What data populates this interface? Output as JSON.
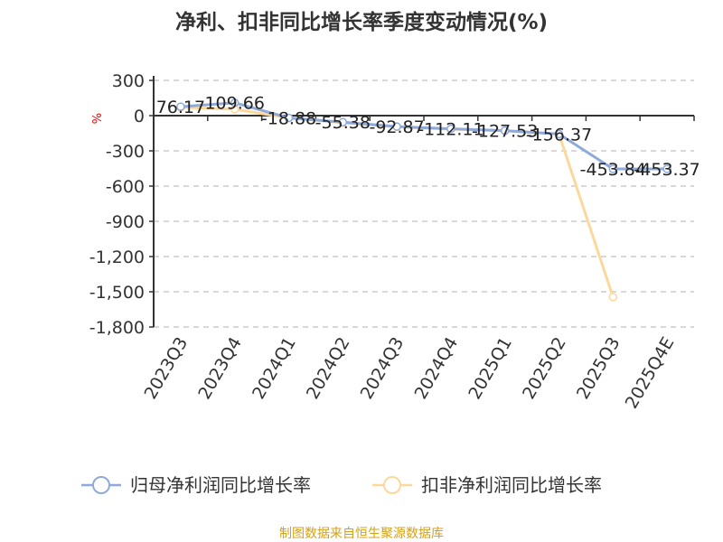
{
  "chart_data": {
    "type": "line",
    "title": "净利、扣非同比增长率季度变动情况(%)",
    "ylabel": "%",
    "categories": [
      "2023Q3",
      "2023Q4",
      "2024Q1",
      "2024Q2",
      "2024Q3",
      "2024Q4",
      "2025Q1",
      "2025Q2",
      "2025Q3",
      "2025Q4E"
    ],
    "yticks": [
      "300",
      "0",
      "-300",
      "-600",
      "-900",
      "-1,200",
      "-1,500",
      "-1,800"
    ],
    "ylim": [
      -1800,
      300
    ],
    "grid": true,
    "legend_position": "bottom",
    "series": [
      {
        "name": "归母净利润同比增长率",
        "color": "#8eaadb",
        "values": [
          76.17,
          109.66,
          -18.88,
          -55.38,
          -92.87,
          -112.11,
          -127.53,
          -156.37,
          -453.84,
          -453.37
        ],
        "labels": [
          "76.17",
          "109.66",
          "-18.88",
          "-55.38",
          "-92.87",
          "-112.11",
          "-127.53",
          "-156.37",
          "-453.84",
          "-453.37"
        ]
      },
      {
        "name": "扣非净利润同比增长率",
        "color": "#fdd89b",
        "values": [
          70,
          55,
          -20,
          -60,
          -95,
          -115,
          -130,
          -156,
          -1545,
          null
        ]
      }
    ]
  },
  "footer": "制图数据来自恒生聚源数据库"
}
